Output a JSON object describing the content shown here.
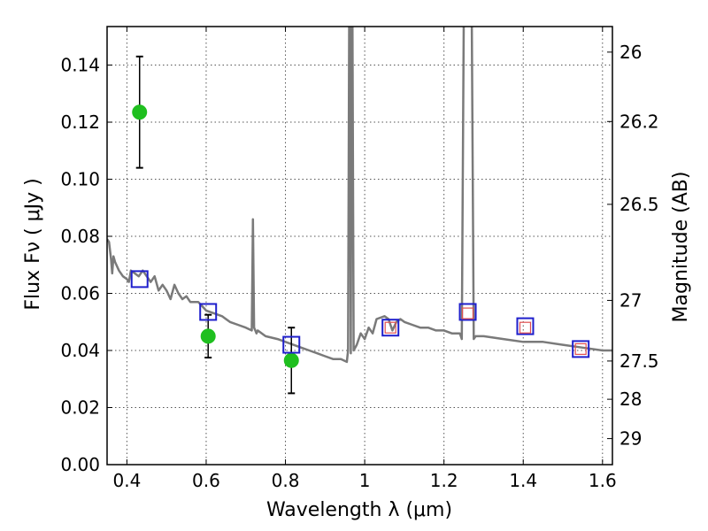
{
  "chart_data": {
    "type": "scatter",
    "xlabel": "Wavelength  λ (μm)",
    "ylabel": "Flux  Fν  ( μJy )",
    "y2label": "Magnitude (AB)",
    "xlim": [
      0.35,
      1.625
    ],
    "ylim": [
      0.0,
      0.1535
    ],
    "grid": true,
    "x_ticks": [
      0.4,
      0.6,
      0.8,
      1.0,
      1.2,
      1.4,
      1.6
    ],
    "x_tick_labels": [
      "0.4",
      "0.6",
      "0.8",
      "1",
      "1.2",
      "1.4",
      "1.6"
    ],
    "y_ticks": [
      0.0,
      0.02,
      0.04,
      0.06,
      0.08,
      0.1,
      0.12,
      0.14
    ],
    "y_tick_labels": [
      "0.00",
      "0.02",
      "0.04",
      "0.06",
      "0.08",
      "0.10",
      "0.12",
      "0.14"
    ],
    "y2_ticks": [
      26,
      26.2,
      26.5,
      27,
      27.5,
      28,
      29
    ],
    "y2_tick_labels": [
      "26",
      "26.2",
      "26.5",
      "27",
      "27.5",
      "28",
      "29"
    ],
    "series": [
      {
        "kind": "line",
        "color": "#7a7a7a",
        "x": [
          0.35,
          0.355,
          0.36,
          0.363,
          0.366,
          0.37,
          0.38,
          0.39,
          0.4,
          0.405,
          0.41,
          0.42,
          0.43,
          0.44,
          0.45,
          0.46,
          0.47,
          0.48,
          0.49,
          0.5,
          0.51,
          0.52,
          0.53,
          0.54,
          0.55,
          0.56,
          0.58,
          0.6,
          0.62,
          0.64,
          0.66,
          0.68,
          0.7,
          0.715,
          0.718,
          0.721,
          0.724,
          0.727,
          0.73,
          0.75,
          0.78,
          0.8,
          0.82,
          0.84,
          0.86,
          0.88,
          0.9,
          0.92,
          0.94,
          0.955,
          0.958,
          0.961,
          0.963,
          0.965,
          0.967,
          0.969,
          0.972,
          0.98,
          0.99,
          1.0,
          1.01,
          1.02,
          1.03,
          1.05,
          1.06,
          1.07,
          1.08,
          1.09,
          1.1,
          1.12,
          1.14,
          1.16,
          1.18,
          1.2,
          1.22,
          1.24,
          1.245,
          1.25,
          1.255,
          1.265,
          1.27,
          1.275,
          1.28,
          1.3,
          1.35,
          1.4,
          1.45,
          1.5,
          1.55,
          1.6,
          1.625
        ],
        "y": [
          0.079,
          0.078,
          0.072,
          0.067,
          0.073,
          0.071,
          0.068,
          0.066,
          0.065,
          0.064,
          0.068,
          0.067,
          0.066,
          0.068,
          0.066,
          0.064,
          0.066,
          0.061,
          0.063,
          0.061,
          0.058,
          0.063,
          0.06,
          0.058,
          0.059,
          0.057,
          0.057,
          0.054,
          0.053,
          0.052,
          0.05,
          0.049,
          0.048,
          0.047,
          0.086,
          0.048,
          0.047,
          0.046,
          0.047,
          0.045,
          0.044,
          0.043,
          0.042,
          0.041,
          0.04,
          0.039,
          0.038,
          0.037,
          0.037,
          0.036,
          0.04,
          0.16,
          0.16,
          0.039,
          0.16,
          0.16,
          0.04,
          0.042,
          0.046,
          0.044,
          0.048,
          0.046,
          0.051,
          0.052,
          0.051,
          0.047,
          0.05,
          0.051,
          0.05,
          0.049,
          0.048,
          0.048,
          0.047,
          0.047,
          0.046,
          0.046,
          0.044,
          0.16,
          0.16,
          0.16,
          0.16,
          0.044,
          0.045,
          0.045,
          0.044,
          0.043,
          0.043,
          0.042,
          0.041,
          0.04,
          0.04
        ]
      },
      {
        "kind": "errorbar",
        "marker": "circle",
        "color": "#1fbf1f",
        "x": [
          0.432,
          0.605,
          0.815
        ],
        "y": [
          0.1235,
          0.045,
          0.0365
        ],
        "yerr": [
          0.0195,
          0.0075,
          0.0115
        ]
      },
      {
        "kind": "marker",
        "marker": "square",
        "color": "#1f1fcc",
        "x": [
          0.432,
          0.605,
          0.815,
          1.065,
          1.26,
          1.405,
          1.545
        ],
        "y": [
          0.065,
          0.0535,
          0.042,
          0.048,
          0.0535,
          0.0485,
          0.0405
        ]
      },
      {
        "kind": "marker",
        "marker": "square-small",
        "color": "#e05050",
        "x": [
          1.065,
          1.26,
          1.405,
          1.545
        ],
        "y": [
          0.048,
          0.053,
          0.048,
          0.0405
        ]
      }
    ]
  }
}
